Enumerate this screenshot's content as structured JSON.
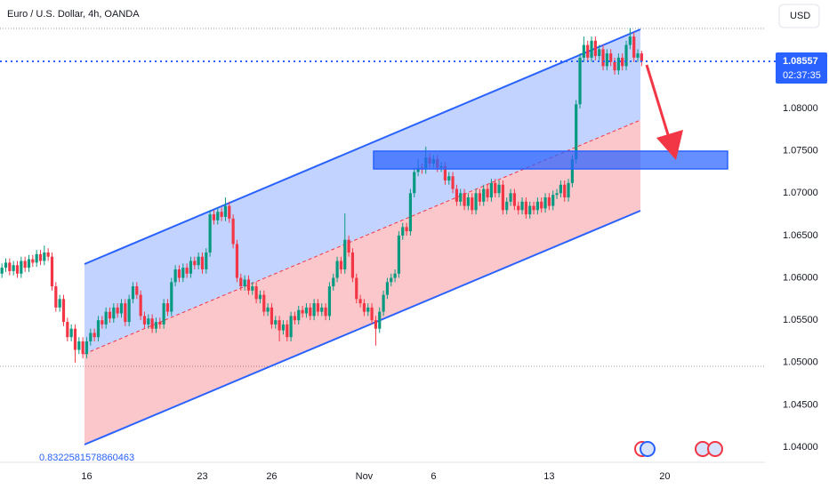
{
  "chart_data": {
    "type": "candlestick",
    "title": "Euro / U.S. Dollar, 4h, OANDA",
    "currency": "USD",
    "last_price": 1.08557,
    "countdown": "02:37:35",
    "drawing_label": "0.8322581578860463",
    "up_color": "#089981",
    "down_color": "#f23645",
    "grid": false,
    "ylim": [
      1.03822,
      1.09281
    ],
    "yticks": [
      {
        "value": 1.04,
        "label": "1.04000"
      },
      {
        "value": 1.045,
        "label": "1.04500"
      },
      {
        "value": 1.05,
        "label": "1.05000"
      },
      {
        "value": 1.055,
        "label": "1.05500"
      },
      {
        "value": 1.06,
        "label": "1.06000"
      },
      {
        "value": 1.065,
        "label": "1.06500"
      },
      {
        "value": 1.07,
        "label": "1.07000"
      },
      {
        "value": 1.075,
        "label": "1.07500"
      },
      {
        "value": 1.08,
        "label": "1.08000"
      }
    ],
    "xlim": [
      -22.5,
      176
    ],
    "xticks": [
      {
        "value": 0,
        "label": "16"
      },
      {
        "value": 30,
        "label": "23"
      },
      {
        "value": 48,
        "label": "26"
      },
      {
        "value": 72,
        "label": "Nov"
      },
      {
        "value": 90,
        "label": "6"
      },
      {
        "value": 120,
        "label": "13"
      },
      {
        "value": 150,
        "label": "20"
      }
    ],
    "x": [
      -22,
      -21,
      -20,
      -19,
      -18,
      -17,
      -16,
      -15,
      -14,
      -13,
      -12,
      -11,
      -10,
      -9,
      -8,
      -7,
      -6,
      -5,
      -4,
      -3,
      -2,
      -1,
      0,
      1,
      2,
      3,
      4,
      5,
      6,
      7,
      8,
      9,
      10,
      11,
      12,
      13,
      14,
      15,
      16,
      17,
      18,
      19,
      20,
      21,
      22,
      23,
      24,
      25,
      26,
      27,
      28,
      29,
      30,
      31,
      32,
      33,
      34,
      35,
      36,
      37,
      38,
      39,
      40,
      41,
      42,
      43,
      44,
      45,
      46,
      47,
      48,
      49,
      50,
      51,
      52,
      53,
      54,
      55,
      56,
      57,
      58,
      59,
      60,
      61,
      62,
      63,
      64,
      65,
      66,
      67,
      68,
      69,
      70,
      71,
      72,
      73,
      74,
      75,
      76,
      77,
      78,
      79,
      80,
      81,
      82,
      83,
      84,
      85,
      86,
      87,
      88,
      89,
      90,
      91,
      92,
      93,
      94,
      95,
      96,
      97,
      98,
      99,
      100,
      101,
      102,
      103,
      104,
      105,
      106,
      107,
      108,
      109,
      110,
      111,
      112,
      113,
      114,
      115,
      116,
      117,
      118,
      119,
      120,
      121,
      122,
      123,
      124,
      125,
      126,
      127,
      128,
      129,
      130,
      131,
      132,
      133,
      134,
      135,
      136,
      137,
      138,
      139,
      140,
      141,
      142,
      143,
      144
    ],
    "ohlc": [
      [
        1.0605,
        1.0617,
        1.06,
        1.0612
      ],
      [
        1.0612,
        1.0623,
        1.0607,
        1.0618
      ],
      [
        1.0618,
        1.0623,
        1.0603,
        1.0608
      ],
      [
        1.0608,
        1.062,
        1.0603,
        1.0615
      ],
      [
        1.0615,
        1.062,
        1.06,
        1.0605
      ],
      [
        1.0605,
        1.0625,
        1.06,
        1.062
      ],
      [
        1.062,
        1.0625,
        1.0607,
        1.0612
      ],
      [
        1.0612,
        1.0627,
        1.0607,
        1.0622
      ],
      [
        1.0622,
        1.0627,
        1.0613,
        1.0618
      ],
      [
        1.0618,
        1.0633,
        1.0613,
        1.0628
      ],
      [
        1.0628,
        1.0633,
        1.0615,
        1.062
      ],
      [
        1.062,
        1.0638,
        1.0615,
        1.063
      ],
      [
        1.063,
        1.0635,
        1.062,
        1.0625
      ],
      [
        1.0625,
        1.063,
        1.0585,
        1.059
      ],
      [
        1.059,
        1.0595,
        1.056,
        1.0565
      ],
      [
        1.0565,
        1.058,
        1.056,
        1.0575
      ],
      [
        1.0575,
        1.058,
        1.0543,
        1.0548
      ],
      [
        1.0548,
        1.0553,
        1.0525,
        1.053
      ],
      [
        1.053,
        1.0545,
        1.0525,
        1.054
      ],
      [
        1.054,
        1.0545,
        1.05,
        1.0515
      ],
      [
        1.0515,
        1.053,
        1.051,
        1.0525
      ],
      [
        1.0525,
        1.053,
        1.0505,
        1.051
      ],
      [
        1.051,
        1.053,
        1.0505,
        1.0525
      ],
      [
        1.0525,
        1.054,
        1.052,
        1.0535
      ],
      [
        1.0535,
        1.054,
        1.0525,
        1.053
      ],
      [
        1.053,
        1.0555,
        1.0525,
        1.055
      ],
      [
        1.055,
        1.0555,
        1.054,
        1.0545
      ],
      [
        1.0545,
        1.0565,
        1.054,
        1.056
      ],
      [
        1.056,
        1.0565,
        1.0547,
        1.0552
      ],
      [
        1.0552,
        1.057,
        1.0547,
        1.0565
      ],
      [
        1.0565,
        1.057,
        1.0553,
        1.0558
      ],
      [
        1.0558,
        1.0575,
        1.0553,
        1.057
      ],
      [
        1.057,
        1.0575,
        1.0543,
        1.0548
      ],
      [
        1.0548,
        1.058,
        1.0543,
        1.0575
      ],
      [
        1.0575,
        1.0595,
        1.057,
        1.059
      ],
      [
        1.059,
        1.0595,
        1.0575,
        1.058
      ],
      [
        1.058,
        1.0585,
        1.055,
        1.0555
      ],
      [
        1.0555,
        1.056,
        1.054,
        1.0545
      ],
      [
        1.0545,
        1.0557,
        1.054,
        1.0552
      ],
      [
        1.0552,
        1.0557,
        1.0535,
        1.054
      ],
      [
        1.054,
        1.0553,
        1.0535,
        1.0548
      ],
      [
        1.0548,
        1.0553,
        1.054,
        1.0545
      ],
      [
        1.0545,
        1.0575,
        1.054,
        1.057
      ],
      [
        1.057,
        1.0575,
        1.0555,
        1.056
      ],
      [
        1.056,
        1.06,
        1.0555,
        1.0595
      ],
      [
        1.0595,
        1.0615,
        1.059,
        1.061
      ],
      [
        1.061,
        1.0615,
        1.0595,
        1.06
      ],
      [
        1.06,
        1.0617,
        1.0595,
        1.0612
      ],
      [
        1.0612,
        1.0617,
        1.06,
        1.0605
      ],
      [
        1.0605,
        1.0625,
        1.06,
        1.062
      ],
      [
        1.062,
        1.0625,
        1.061,
        1.0615
      ],
      [
        1.0615,
        1.063,
        1.061,
        1.0625
      ],
      [
        1.0625,
        1.063,
        1.0605,
        1.061
      ],
      [
        1.061,
        1.0635,
        1.0605,
        1.063
      ],
      [
        1.063,
        1.068,
        1.0625,
        1.0675
      ],
      [
        1.0675,
        1.068,
        1.0663,
        1.0668
      ],
      [
        1.0668,
        1.0683,
        1.0663,
        1.0678
      ],
      [
        1.0678,
        1.0683,
        1.0667,
        1.0672
      ],
      [
        1.0672,
        1.0695,
        1.0667,
        1.0685
      ],
      [
        1.0685,
        1.069,
        1.0665,
        1.067
      ],
      [
        1.067,
        1.0675,
        1.0635,
        1.064
      ],
      [
        1.064,
        1.0645,
        1.0595,
        1.06
      ],
      [
        1.06,
        1.0605,
        1.0585,
        1.059
      ],
      [
        1.059,
        1.0603,
        1.0585,
        1.0598
      ],
      [
        1.0598,
        1.0603,
        1.058,
        1.0585
      ],
      [
        1.0585,
        1.0595,
        1.058,
        1.059
      ],
      [
        1.059,
        1.0595,
        1.057,
        1.0575
      ],
      [
        1.0575,
        1.0585,
        1.057,
        1.058
      ],
      [
        1.058,
        1.0585,
        1.0555,
        1.056
      ],
      [
        1.056,
        1.057,
        1.0555,
        1.0565
      ],
      [
        1.0565,
        1.057,
        1.054,
        1.0545
      ],
      [
        1.0545,
        1.0555,
        1.054,
        1.055
      ],
      [
        1.055,
        1.0555,
        1.0525,
        1.0538
      ],
      [
        1.0538,
        1.055,
        1.0533,
        1.0545
      ],
      [
        1.0545,
        1.055,
        1.0525,
        1.053
      ],
      [
        1.053,
        1.056,
        1.0525,
        1.0555
      ],
      [
        1.0555,
        1.056,
        1.0545,
        1.055
      ],
      [
        1.055,
        1.0567,
        1.0545,
        1.0562
      ],
      [
        1.0562,
        1.0567,
        1.0553,
        1.0558
      ],
      [
        1.0558,
        1.057,
        1.0553,
        1.0565
      ],
      [
        1.0565,
        1.057,
        1.055,
        1.0555
      ],
      [
        1.0555,
        1.0575,
        1.055,
        1.057
      ],
      [
        1.057,
        1.0575,
        1.0555,
        1.056
      ],
      [
        1.056,
        1.057,
        1.0555,
        1.0565
      ],
      [
        1.0565,
        1.057,
        1.055,
        1.0555
      ],
      [
        1.0555,
        1.0595,
        1.055,
        1.059
      ],
      [
        1.059,
        1.0605,
        1.0585,
        1.06
      ],
      [
        1.06,
        1.0625,
        1.0595,
        1.062
      ],
      [
        1.062,
        1.0625,
        1.0605,
        1.061
      ],
      [
        1.061,
        1.0676,
        1.0605,
        1.0645
      ],
      [
        1.0645,
        1.065,
        1.0625,
        1.063
      ],
      [
        1.063,
        1.0635,
        1.0595,
        1.06
      ],
      [
        1.06,
        1.0605,
        1.057,
        1.0575
      ],
      [
        1.0575,
        1.058,
        1.0565,
        1.057
      ],
      [
        1.057,
        1.0575,
        1.0555,
        1.056
      ],
      [
        1.056,
        1.057,
        1.0555,
        1.0565
      ],
      [
        1.0565,
        1.057,
        1.0545,
        1.055
      ],
      [
        1.055,
        1.0555,
        1.052,
        1.054
      ],
      [
        1.054,
        1.0565,
        1.0535,
        1.056
      ],
      [
        1.056,
        1.0585,
        1.0555,
        1.058
      ],
      [
        1.058,
        1.06,
        1.0575,
        1.0595
      ],
      [
        1.0595,
        1.0605,
        1.059,
        1.06
      ],
      [
        1.06,
        1.061,
        1.0595,
        1.0605
      ],
      [
        1.0605,
        1.0655,
        1.06,
        1.065
      ],
      [
        1.065,
        1.0665,
        1.0645,
        1.066
      ],
      [
        1.066,
        1.0665,
        1.065,
        1.0655
      ],
      [
        1.0655,
        1.0705,
        1.065,
        1.07
      ],
      [
        1.07,
        1.073,
        1.0695,
        1.0725
      ],
      [
        1.0725,
        1.074,
        1.072,
        1.073
      ],
      [
        1.073,
        1.0735,
        1.0723,
        1.0728
      ],
      [
        1.0728,
        1.0755,
        1.0723,
        1.0742
      ],
      [
        1.0742,
        1.0747,
        1.073,
        1.0735
      ],
      [
        1.0735,
        1.0745,
        1.073,
        1.074
      ],
      [
        1.074,
        1.0745,
        1.0725,
        1.073
      ],
      [
        1.073,
        1.0737,
        1.0725,
        1.0732
      ],
      [
        1.0732,
        1.0737,
        1.071,
        1.0715
      ],
      [
        1.0715,
        1.0725,
        1.071,
        1.072
      ],
      [
        1.072,
        1.0725,
        1.07,
        1.0705
      ],
      [
        1.0705,
        1.071,
        1.0685,
        1.069
      ],
      [
        1.069,
        1.0705,
        1.0685,
        1.07
      ],
      [
        1.07,
        1.0705,
        1.068,
        1.0685
      ],
      [
        1.0685,
        1.07,
        1.068,
        1.0695
      ],
      [
        1.0695,
        1.07,
        1.0675,
        1.068
      ],
      [
        1.068,
        1.0705,
        1.0675,
        1.07
      ],
      [
        1.07,
        1.0705,
        1.0685,
        1.069
      ],
      [
        1.069,
        1.071,
        1.0685,
        1.0705
      ],
      [
        1.0705,
        1.071,
        1.069,
        1.0695
      ],
      [
        1.0695,
        1.0717,
        1.069,
        1.0712
      ],
      [
        1.0712,
        1.0717,
        1.0695,
        1.07
      ],
      [
        1.07,
        1.0715,
        1.0695,
        1.071
      ],
      [
        1.071,
        1.0715,
        1.0675,
        1.068
      ],
      [
        1.068,
        1.0695,
        1.0675,
        1.069
      ],
      [
        1.069,
        1.0705,
        1.0685,
        1.07
      ],
      [
        1.07,
        1.0705,
        1.068,
        1.0685
      ],
      [
        1.0685,
        1.069,
        1.0675,
        1.068
      ],
      [
        1.068,
        1.0695,
        1.0675,
        1.069
      ],
      [
        1.069,
        1.0695,
        1.067,
        1.0675
      ],
      [
        1.0675,
        1.069,
        1.067,
        1.0685
      ],
      [
        1.0685,
        1.069,
        1.0675,
        1.068
      ],
      [
        1.068,
        1.0695,
        1.0675,
        1.069
      ],
      [
        1.069,
        1.0695,
        1.0677,
        1.0682
      ],
      [
        1.0682,
        1.07,
        1.0677,
        1.0695
      ],
      [
        1.0695,
        1.07,
        1.068,
        1.0685
      ],
      [
        1.0685,
        1.0703,
        1.068,
        1.0698
      ],
      [
        1.0698,
        1.0705,
        1.0693,
        1.07
      ],
      [
        1.07,
        1.0715,
        1.0695,
        1.071
      ],
      [
        1.071,
        1.0715,
        1.069,
        1.0695
      ],
      [
        1.0695,
        1.0717,
        1.069,
        1.0712
      ],
      [
        1.0712,
        1.0745,
        1.0707,
        1.074
      ],
      [
        1.074,
        1.081,
        1.0735,
        1.0805
      ],
      [
        1.0805,
        1.0865,
        1.08,
        1.086
      ],
      [
        1.086,
        1.0885,
        1.0855,
        1.0875
      ],
      [
        1.0875,
        1.088,
        1.0855,
        1.086
      ],
      [
        1.086,
        1.0885,
        1.0855,
        1.088
      ],
      [
        1.088,
        1.0885,
        1.0857,
        1.0862
      ],
      [
        1.0862,
        1.0875,
        1.0857,
        1.087
      ],
      [
        1.087,
        1.0875,
        1.0845,
        1.085
      ],
      [
        1.085,
        1.087,
        1.0845,
        1.0865
      ],
      [
        1.0865,
        1.087,
        1.085,
        1.0855
      ],
      [
        1.0855,
        1.086,
        1.084,
        1.0845
      ],
      [
        1.0845,
        1.0865,
        1.084,
        1.086
      ],
      [
        1.086,
        1.0865,
        1.0845,
        1.085
      ],
      [
        1.085,
        1.088,
        1.0845,
        1.0875
      ],
      [
        1.0875,
        1.0895,
        1.087,
        1.0885
      ],
      [
        1.0885,
        1.089,
        1.0855,
        1.086
      ],
      [
        1.086,
        1.087,
        1.0855,
        1.0865
      ],
      [
        1.0865,
        1.0868,
        1.085,
        1.08557
      ]
    ]
  }
}
